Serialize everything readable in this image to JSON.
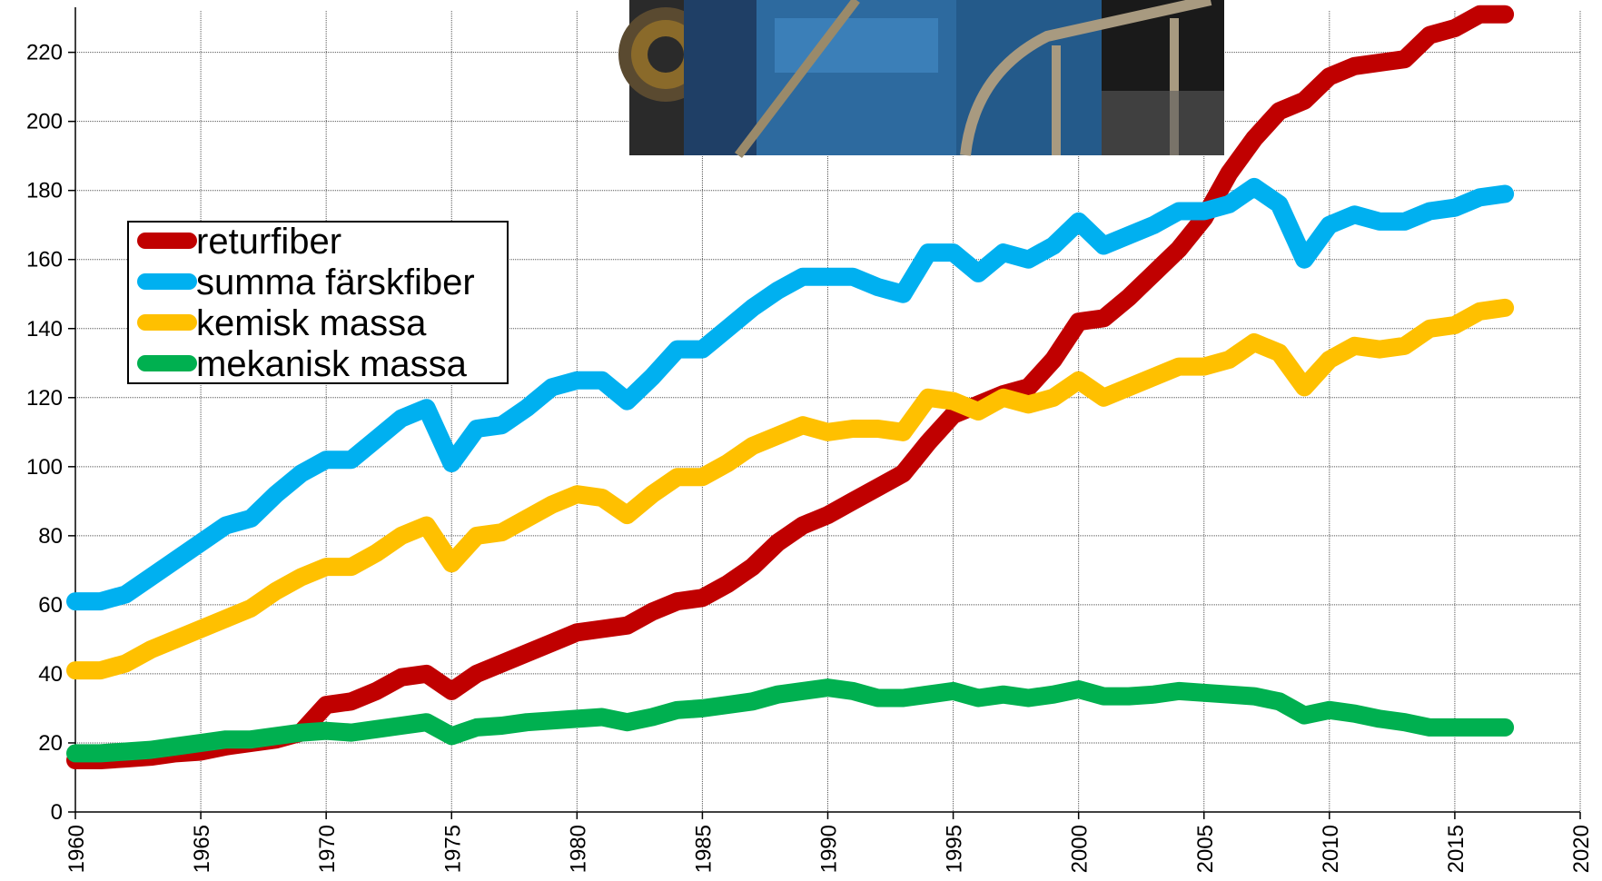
{
  "chart_data": {
    "type": "line",
    "title": "",
    "xlabel": "",
    "ylabel": "",
    "xlim": [
      1960,
      2020
    ],
    "ylim": [
      0,
      232
    ],
    "x_ticks": [
      1960,
      1965,
      1970,
      1975,
      1980,
      1985,
      1990,
      1995,
      2000,
      2005,
      2010,
      2015,
      2020
    ],
    "y_ticks": [
      0,
      20,
      40,
      60,
      80,
      100,
      120,
      140,
      160,
      180,
      200,
      220
    ],
    "grid": true,
    "legend_position": "left",
    "x": [
      1960,
      1961,
      1962,
      1963,
      1964,
      1965,
      1966,
      1967,
      1968,
      1969,
      1970,
      1971,
      1972,
      1973,
      1974,
      1975,
      1976,
      1977,
      1978,
      1979,
      1980,
      1981,
      1982,
      1983,
      1984,
      1985,
      1986,
      1987,
      1988,
      1989,
      1990,
      1991,
      1992,
      1993,
      1994,
      1995,
      1996,
      1997,
      1998,
      1999,
      2000,
      2001,
      2002,
      2003,
      2004,
      2005,
      2006,
      2007,
      2008,
      2009,
      2010,
      2011,
      2012,
      2013,
      2014,
      2015,
      2016,
      2017
    ],
    "series": [
      {
        "name": "returfiber",
        "color": "#c00000",
        "values": [
          15,
          15,
          15.5,
          16,
          17,
          17.5,
          19,
          20,
          21,
          23,
          31,
          32,
          35,
          39,
          40,
          35,
          40,
          43,
          46,
          49,
          52,
          53,
          54,
          58,
          61,
          62,
          66,
          71,
          78,
          83,
          86,
          90,
          94,
          98,
          107,
          115,
          118,
          121,
          123,
          131,
          142,
          143,
          149,
          156,
          163,
          172,
          185,
          195,
          203,
          206,
          213,
          216,
          217,
          218,
          225,
          227,
          231,
          231
        ],
        "width": 20
      },
      {
        "name": "summa färskfiber",
        "color": "#00b0f0",
        "values": [
          61,
          61,
          63,
          68,
          73,
          78,
          83,
          85,
          92,
          98,
          102,
          102,
          108,
          114,
          117,
          101,
          111,
          112,
          117,
          123,
          125,
          125,
          119,
          126,
          134,
          134,
          140,
          146,
          151,
          155,
          155,
          155,
          152,
          150,
          162,
          162,
          156,
          162,
          160,
          164,
          171,
          164,
          167,
          170,
          174,
          174,
          176,
          181,
          176,
          160,
          170,
          173,
          171,
          171,
          174,
          175,
          178,
          179
        ],
        "width": 20
      },
      {
        "name": "kemisk massa",
        "color": "#ffc000",
        "values": [
          41,
          41,
          43,
          47,
          50,
          53,
          56,
          59,
          64,
          68,
          71,
          71,
          75,
          80,
          83,
          72,
          80,
          81,
          85,
          89,
          92,
          91,
          86,
          92,
          97,
          97,
          101,
          106,
          109,
          112,
          110,
          111,
          111,
          110,
          120,
          119,
          116,
          120,
          118,
          120,
          125,
          120,
          123,
          126,
          129,
          129,
          131,
          136,
          133,
          123,
          131,
          135,
          134,
          135,
          140,
          141,
          145,
          146
        ],
        "width": 20
      },
      {
        "name": "mekanisk massa",
        "color": "#00b050",
        "values": [
          17,
          17,
          17.5,
          18,
          19,
          20,
          21,
          21,
          22,
          23,
          23.5,
          23,
          24,
          25,
          26,
          22,
          24.5,
          25,
          26,
          26.5,
          27,
          27.5,
          26,
          27.5,
          29.5,
          30,
          31,
          32,
          34,
          35,
          36,
          35,
          33,
          33,
          34,
          35,
          33,
          34,
          33,
          34,
          35.5,
          33.5,
          33.5,
          34,
          35,
          34.5,
          34,
          33.5,
          32,
          28,
          29.5,
          28.5,
          27,
          26,
          24.5,
          24.5,
          24.5,
          24.5
        ],
        "width": 20
      }
    ]
  }
}
